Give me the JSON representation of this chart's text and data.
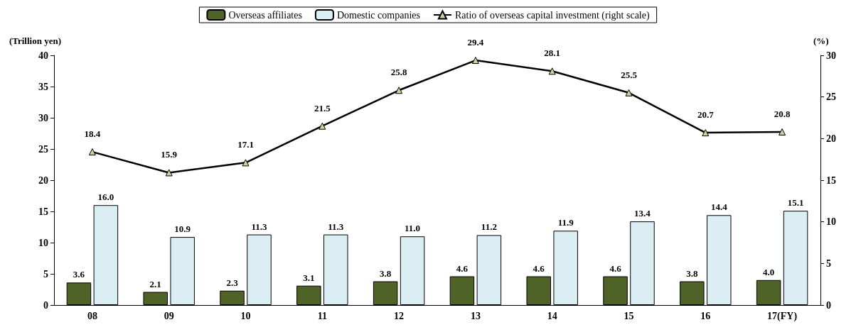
{
  "chart_data": {
    "type": "bar",
    "ylabel": "(Trillion yen)",
    "y2label": "(%)",
    "categories": [
      "08",
      "09",
      "10",
      "11",
      "12",
      "13",
      "14",
      "15",
      "16",
      "17(FY)"
    ],
    "series": [
      {
        "name": "Overseas affiliates",
        "color": "#4f6228",
        "values": [
          3.6,
          2.1,
          2.3,
          3.1,
          3.8,
          4.6,
          4.6,
          4.6,
          3.8,
          4.0
        ],
        "value_labels": [
          "3.6",
          "2.1",
          "2.3",
          "3.1",
          "3.8",
          "4.6",
          "4.6",
          "4.6",
          "3.8",
          "4.0"
        ]
      },
      {
        "name": "Domestic companies",
        "color": "#dbeef4",
        "values": [
          16.0,
          10.9,
          11.3,
          11.3,
          11.0,
          11.2,
          11.9,
          13.4,
          14.4,
          15.1
        ],
        "value_labels": [
          "16.0",
          "10.9",
          "11.3",
          "11.3",
          "11.0",
          "11.2",
          "11.9",
          "13.4",
          "14.4",
          "15.1"
        ]
      },
      {
        "name": "Ratio of overseas capital investment (right scale)",
        "type": "line",
        "axis": "y2",
        "color": "#000000",
        "marker": "triangle",
        "values": [
          18.4,
          15.9,
          17.1,
          21.5,
          25.8,
          29.4,
          28.1,
          25.5,
          20.7,
          20.8
        ],
        "value_labels": [
          "18.4",
          "15.9",
          "17.1",
          "21.5",
          "25.8",
          "29.4",
          "28.1",
          "25.5",
          "20.7",
          "20.8"
        ]
      }
    ],
    "ylim": [
      0,
      40
    ],
    "yticks": [
      0,
      5,
      10,
      15,
      20,
      25,
      30,
      35,
      40
    ],
    "y2lim": [
      0,
      30
    ],
    "y2ticks": [
      0,
      5,
      10,
      15,
      20,
      25,
      30
    ],
    "legend": "top",
    "grid": false
  }
}
